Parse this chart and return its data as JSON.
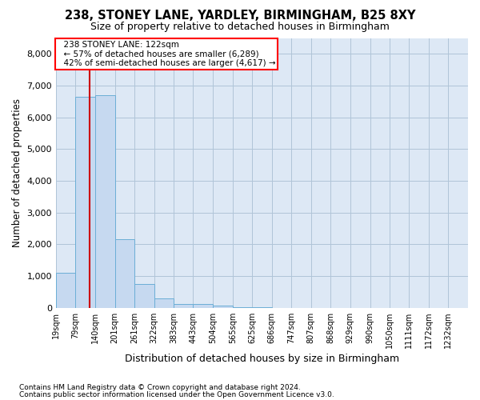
{
  "title1": "238, STONEY LANE, YARDLEY, BIRMINGHAM, B25 8XY",
  "title2": "Size of property relative to detached houses in Birmingham",
  "xlabel": "Distribution of detached houses by size in Birmingham",
  "ylabel": "Number of detached properties",
  "footnote1": "Contains HM Land Registry data © Crown copyright and database right 2024.",
  "footnote2": "Contains public sector information licensed under the Open Government Licence v3.0.",
  "annotation_title": "238 STONEY LANE: 122sqm",
  "annotation_line2": "← 57% of detached houses are smaller (6,289)",
  "annotation_line3": "42% of semi-detached houses are larger (4,617) →",
  "property_size": 122,
  "bar_categories": [
    "19sqm",
    "79sqm",
    "140sqm",
    "201sqm",
    "261sqm",
    "322sqm",
    "383sqm",
    "443sqm",
    "504sqm",
    "565sqm",
    "625sqm",
    "686sqm",
    "747sqm",
    "807sqm",
    "868sqm",
    "929sqm",
    "990sqm",
    "1050sqm",
    "1111sqm",
    "1172sqm",
    "1232sqm"
  ],
  "bar_edges": [
    19,
    79,
    140,
    201,
    261,
    322,
    383,
    443,
    504,
    565,
    625,
    686,
    747,
    807,
    868,
    929,
    990,
    1050,
    1111,
    1172,
    1232
  ],
  "bar_values": [
    1100,
    6650,
    6700,
    2150,
    750,
    300,
    130,
    120,
    70,
    10,
    10,
    0,
    0,
    0,
    0,
    0,
    0,
    0,
    0,
    0,
    0
  ],
  "bar_color": "#c6d9f0",
  "bar_edge_color": "#6baed6",
  "highlight_color": "#cc0000",
  "background_color": "#ffffff",
  "plot_bg_color": "#dde8f5",
  "grid_color": "#b0c4d8",
  "ylim": [
    0,
    8500
  ],
  "yticks": [
    0,
    1000,
    2000,
    3000,
    4000,
    5000,
    6000,
    7000,
    8000
  ]
}
